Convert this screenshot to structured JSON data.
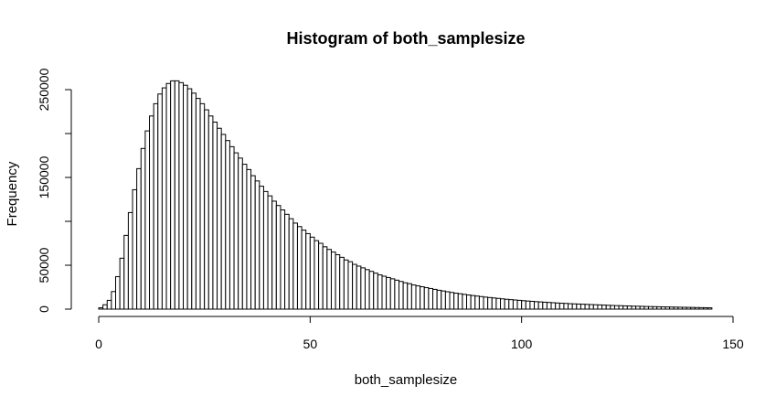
{
  "chart_data": {
    "type": "bar",
    "title": "Histogram of both_samplesize",
    "xlabel": "both_samplesize",
    "ylabel": "Frequency",
    "xlim": [
      0,
      150
    ],
    "ylim": [
      0,
      250000
    ],
    "x_ticks": [
      0,
      50,
      100,
      150
    ],
    "x_tick_labels": [
      "0",
      "50",
      "100",
      "150"
    ],
    "y_ticks": [
      0,
      50000,
      150000,
      250000
    ],
    "y_tick_labels": [
      "0",
      "50000",
      "150000",
      "250000"
    ],
    "grid": false,
    "bin_start": 0,
    "bin_width": 1,
    "values": [
      1500,
      5000,
      10000,
      20000,
      37000,
      58000,
      84000,
      110000,
      136000,
      160000,
      183000,
      203000,
      220000,
      234000,
      245000,
      252000,
      257000,
      260000,
      260000,
      258000,
      255000,
      251000,
      246000,
      240000,
      234000,
      227000,
      220000,
      213000,
      206000,
      199000,
      192000,
      185000,
      178000,
      172000,
      165000,
      159000,
      152000,
      146000,
      140000,
      134000,
      129000,
      123000,
      118000,
      113000,
      108000,
      103000,
      98000,
      94000,
      90000,
      86000,
      82000,
      78000,
      75000,
      71000,
      68000,
      65000,
      62000,
      59000,
      56000,
      54000,
      51000,
      49000,
      47000,
      45000,
      43000,
      41000,
      39000,
      37500,
      36000,
      34500,
      33000,
      31500,
      30000,
      29000,
      27500,
      26500,
      25500,
      24500,
      23500,
      22500,
      21500,
      20700,
      19800,
      19000,
      18200,
      17500,
      16800,
      16100,
      15500,
      14900,
      14300,
      13700,
      13200,
      12700,
      12200,
      11700,
      11200,
      10800,
      10400,
      10000,
      9600,
      9200,
      8900,
      8500,
      8200,
      7900,
      7600,
      7300,
      7000,
      6700,
      6500,
      6200,
      6000,
      5800,
      5600,
      5400,
      5200,
      5000,
      4800,
      4600,
      4400,
      4200,
      4000,
      3900,
      3700,
      3600,
      3400,
      3300,
      3200,
      3000,
      2900,
      2800,
      2700,
      2600,
      2500,
      2400,
      2300,
      2200,
      2100,
      2000,
      1900,
      1800,
      1700,
      1600,
      1500
    ]
  }
}
